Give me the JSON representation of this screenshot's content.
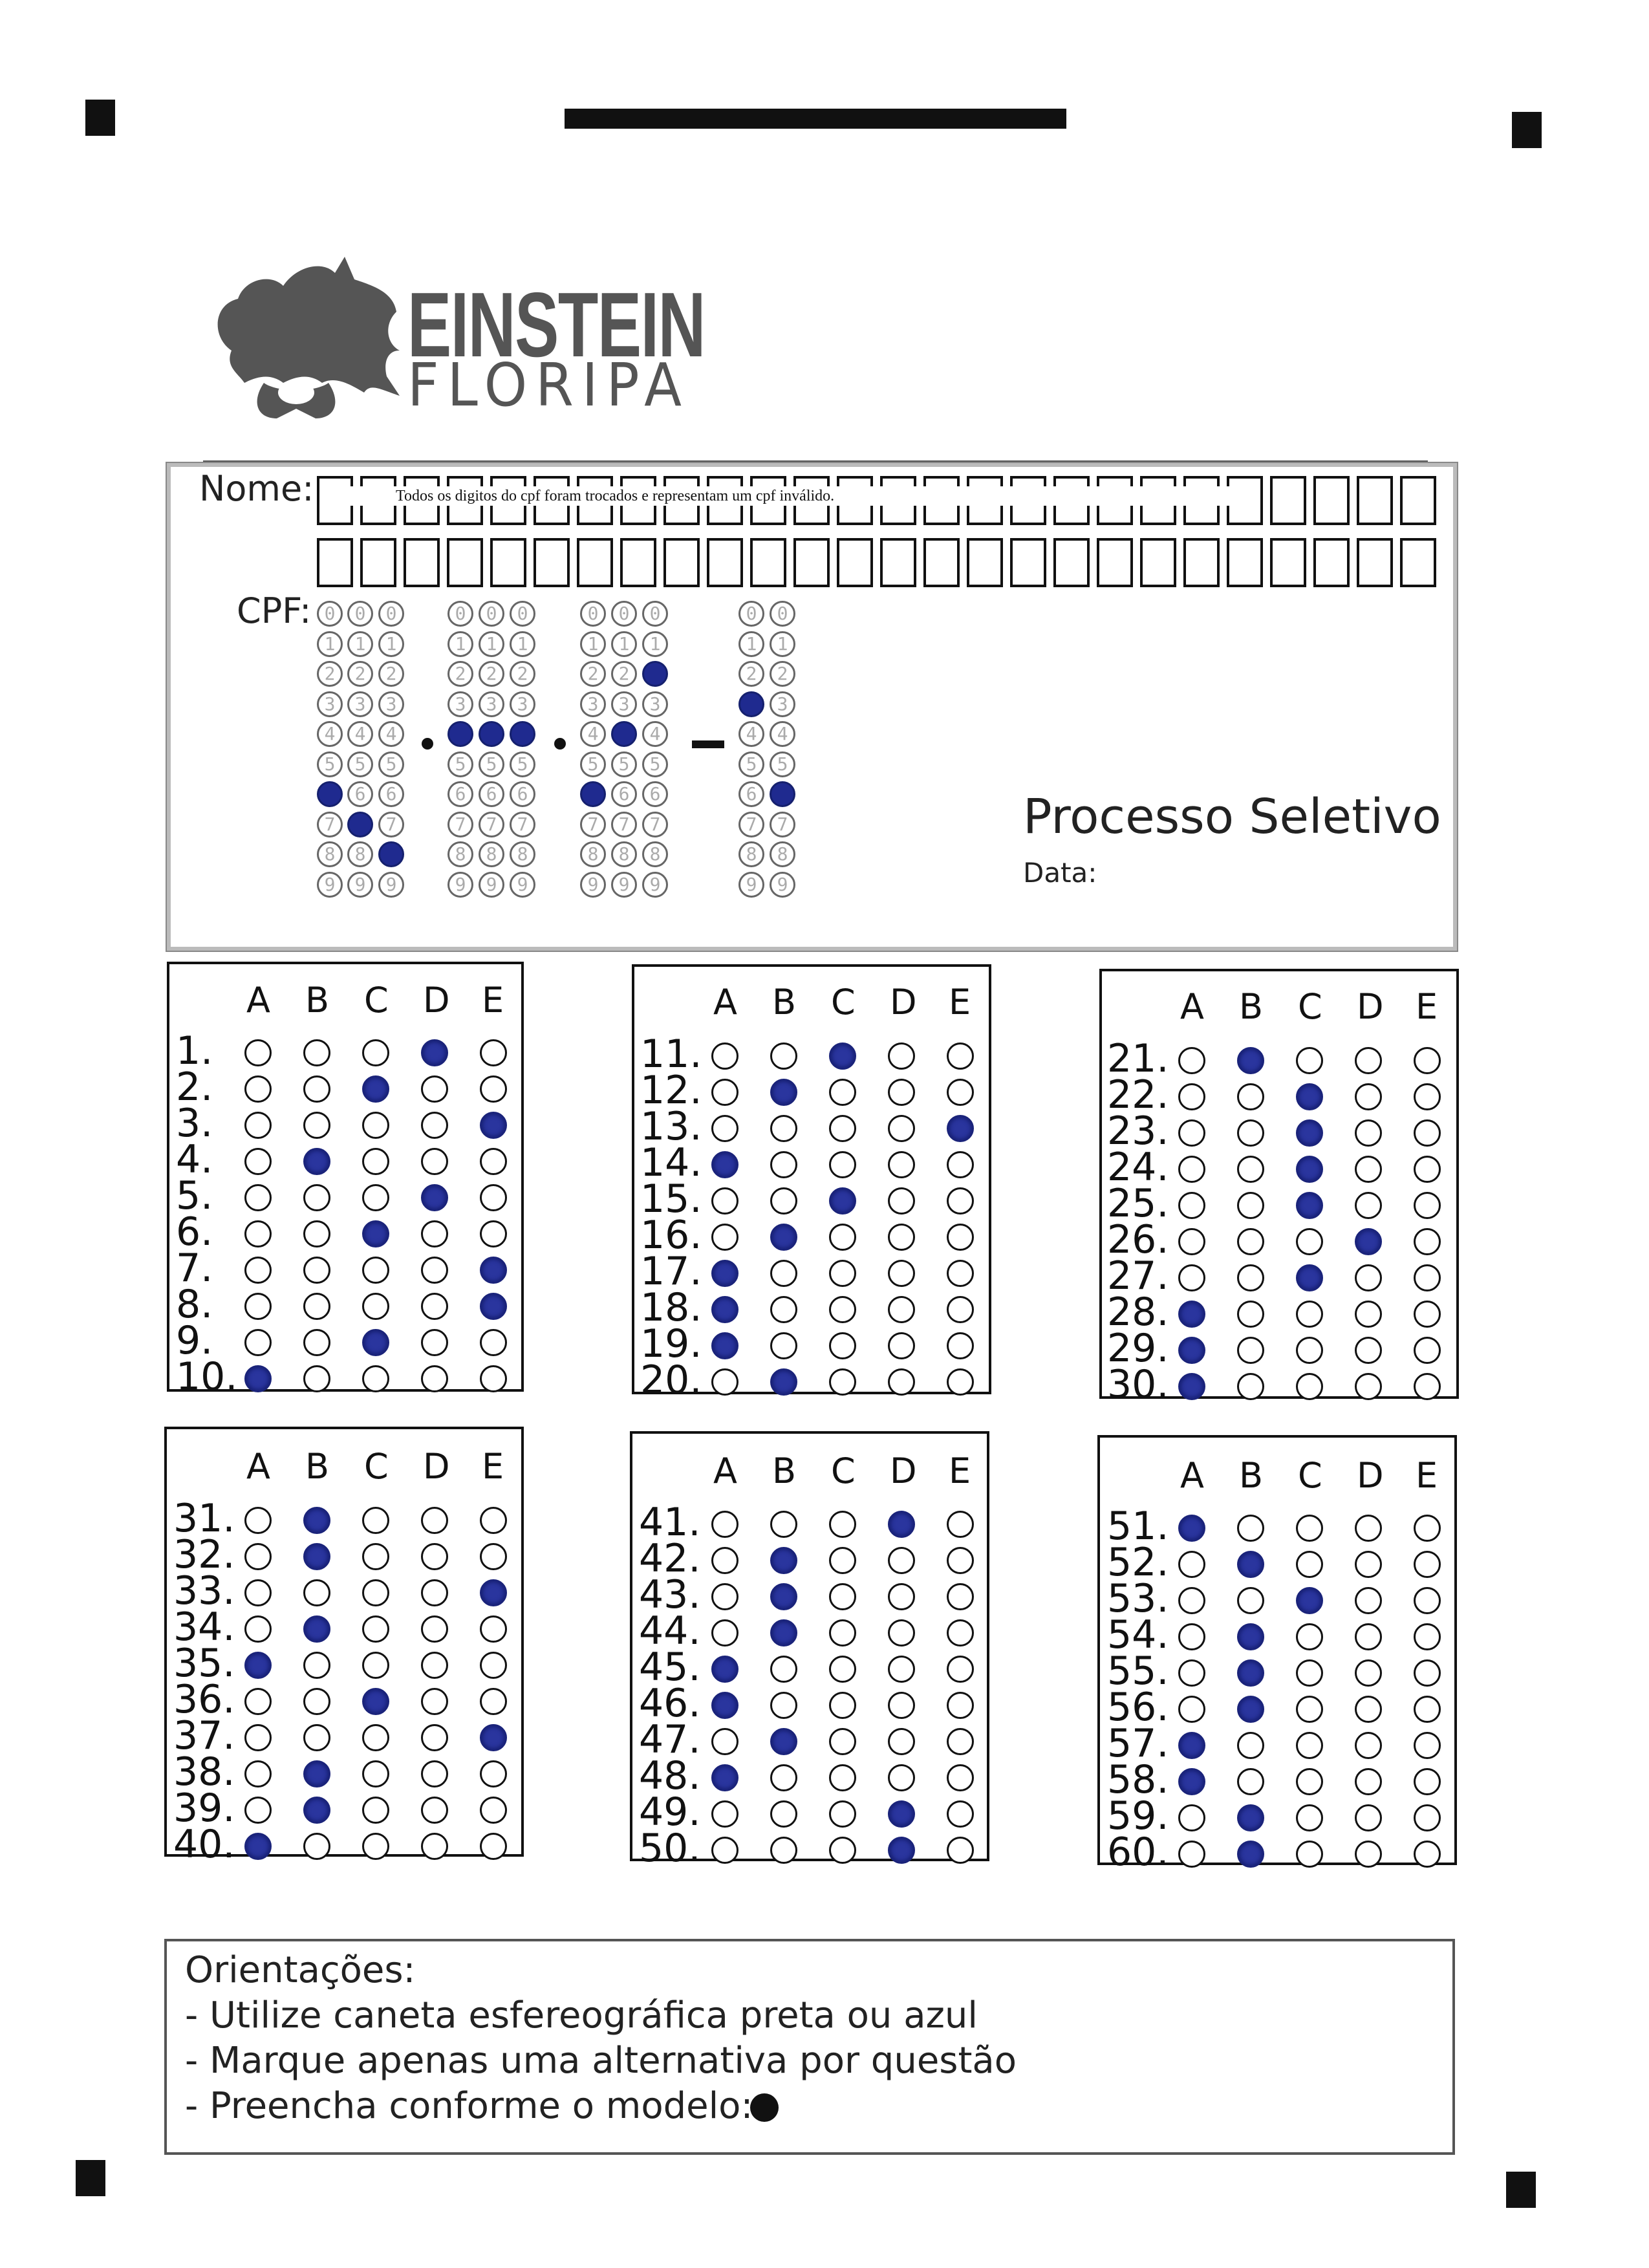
{
  "header": {
    "logo_line1": "EINSTEIN",
    "logo_line2": "FLORIPA",
    "nome_label": "Nome:",
    "cpf_label": "CPF:",
    "overlay_note": "Todos os digitos do cpf foram trocados e representam um cpf inválido.",
    "process_title": "Processo Seletivo",
    "date_label": "Data:"
  },
  "cpf": {
    "digits_label": [
      "0",
      "1",
      "2",
      "3",
      "4",
      "5",
      "6",
      "7",
      "8",
      "9"
    ],
    "columns_filled": [
      6,
      7,
      8,
      4,
      4,
      4,
      6,
      4,
      2,
      3,
      6
    ]
  },
  "answers": {
    "column_headers": [
      "A",
      "B",
      "C",
      "D",
      "E"
    ],
    "marked": [
      "D",
      "C",
      "E",
      "B",
      "D",
      "C",
      "E",
      "E",
      "C",
      "A",
      "C",
      "B",
      "E",
      "A",
      "C",
      "B",
      "A",
      "A",
      "A",
      "B",
      "B",
      "C",
      "C",
      "C",
      "C",
      "D",
      "C",
      "A",
      "A",
      "A",
      "B",
      "B",
      "E",
      "B",
      "A",
      "C",
      "E",
      "B",
      "B",
      "A",
      "D",
      "B",
      "B",
      "B",
      "A",
      "A",
      "B",
      "A",
      "D",
      "D",
      "A",
      "B",
      "C",
      "B",
      "B",
      "B",
      "A",
      "A",
      "B",
      "B"
    ]
  },
  "orientacoes": {
    "title": "Orientações:",
    "lines": [
      "- Utilize caneta esfereográfica preta ou azul",
      "- Marque apenas uma alternativa por questão",
      "- Preencha conforme o modelo:"
    ]
  }
}
